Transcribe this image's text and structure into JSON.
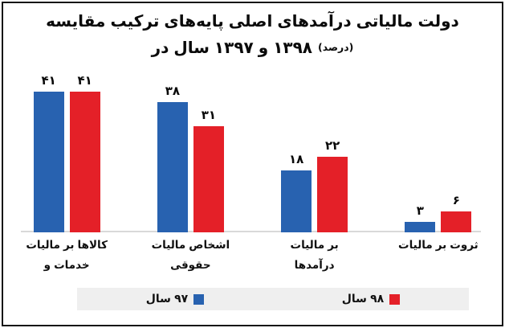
{
  "title": {
    "line1": "مقایسه ترکیب پایه‌های اصلی درآمدهای مالیاتی دولت",
    "line2": "در سال ۱۳۹۷ و ۱۳۹۸",
    "line2_unit": "(درصد)"
  },
  "chart_data": {
    "type": "bar",
    "title": "مقایسه ترکیب پایه‌های اصلی درآمدهای مالیاتی دولت",
    "subtitle": "در سال ۱۳۹۷ و ۱۳۹۸ (درصد)",
    "unit": "درصد",
    "categories": [
      "مالیات بر کالاها و خدمات",
      "مالیات اشخاص حقوقی",
      "مالیات بر درآمدها",
      "مالیات بر ثروت"
    ],
    "category_lines": [
      [
        "مالیات بر کالاها",
        "و خدمات"
      ],
      [
        "مالیات اشخاص",
        "حقوقی"
      ],
      [
        "مالیات بر",
        "درآمدها"
      ],
      [
        "مالیات بر ثروت"
      ]
    ],
    "series": [
      {
        "name": "سال ۹۷",
        "color": "#2862B0",
        "values": [
          41,
          38,
          18,
          3
        ],
        "value_labels": [
          "۴۱",
          "۳۸",
          "۱۸",
          "۳"
        ]
      },
      {
        "name": "سال ۹۸",
        "color": "#E42028",
        "values": [
          41,
          31,
          22,
          6
        ],
        "value_labels": [
          "۴۱",
          "۳۱",
          "۲۲",
          "۶"
        ]
      }
    ],
    "ylim": [
      0,
      45
    ],
    "grid": false,
    "legend_position": "bottom",
    "axis_line_color": "#D9D9D9",
    "legend_bg": "#EFEFEF",
    "text_color": "#0A0A0A"
  }
}
